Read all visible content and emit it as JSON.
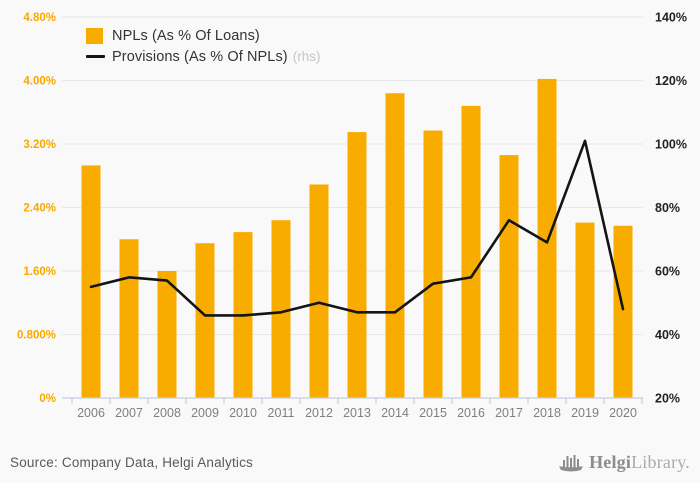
{
  "legend": {
    "series1_label": "NPLs (As % Of Loans)",
    "series2_label": "Provisions (As % Of NPLs)",
    "series2_suffix": "(rhs)"
  },
  "footer": {
    "source": "Source: Company Data, Helgi Analytics",
    "logo_bold": "Helgi",
    "logo_light": "Library."
  },
  "colors": {
    "bar": "#F9AC00",
    "line": "#141414",
    "grid": "#e8e8e8",
    "axis": "#c7cde2",
    "left_tick": "#F9A800",
    "right_tick": "#222222",
    "x_label": "#808080",
    "background": "#f9f9f9"
  },
  "chart_data": {
    "type": "bar",
    "title": "",
    "categories": [
      "2006",
      "2007",
      "2008",
      "2009",
      "2010",
      "2011",
      "2012",
      "2013",
      "2014",
      "2015",
      "2016",
      "2017",
      "2018",
      "2019",
      "2020"
    ],
    "series": [
      {
        "name": "NPLs (As % Of Loans)",
        "type": "bar",
        "axis": "left",
        "values": [
          2.93,
          2.0,
          1.6,
          1.95,
          2.09,
          2.24,
          2.69,
          3.35,
          3.84,
          3.37,
          3.68,
          3.06,
          4.02,
          2.21,
          2.17
        ]
      },
      {
        "name": "Provisions (As % Of NPLs) (rhs)",
        "type": "line",
        "axis": "right",
        "values": [
          55,
          58,
          57,
          46,
          46,
          47,
          50,
          47,
          47,
          56,
          58,
          76,
          69,
          101,
          48
        ]
      }
    ],
    "left_axis": {
      "min": 0,
      "max": 4.8,
      "tick_labels_top_to_bottom": [
        "4.80%",
        "4.00%",
        "3.20%",
        "2.40%",
        "1.60%",
        "0.800%",
        "0%"
      ]
    },
    "right_axis": {
      "min": 20,
      "max": 140,
      "tick_labels_top_to_bottom": [
        "140%",
        "120%",
        "100%",
        "80%",
        "60%",
        "40%",
        "20%"
      ]
    },
    "grid": true,
    "legend_position": "top-left"
  }
}
